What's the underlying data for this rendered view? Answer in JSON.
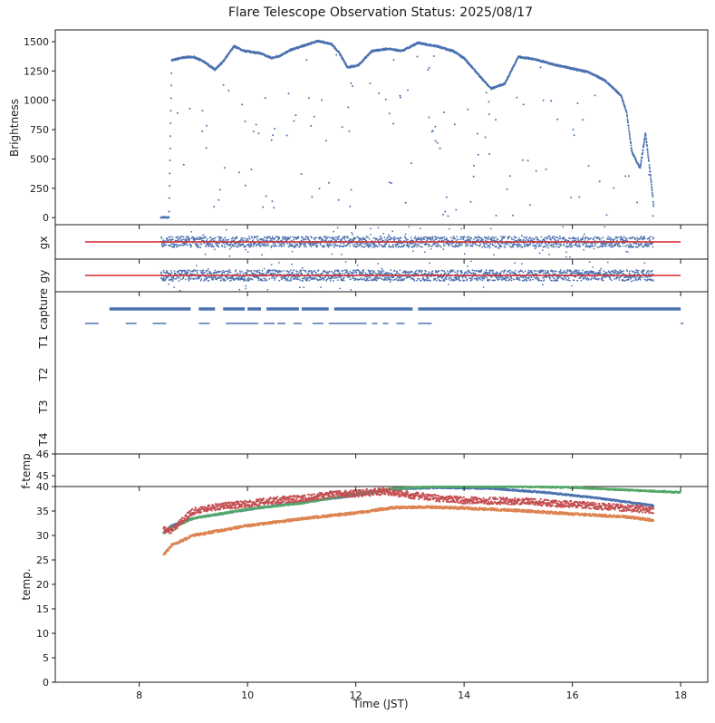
{
  "figure": {
    "title": "Flare Telescope Observation Status: 2025/08/17"
  },
  "chart_data": [
    {
      "panel": "brightness",
      "type": "scatter",
      "ylabel": "Brightness",
      "xlim": [
        6.45,
        18.5
      ],
      "ylim": [
        -60,
        1600
      ],
      "yticks": [
        0,
        250,
        500,
        750,
        1000,
        1250,
        1500
      ],
      "color": "#4c72b0",
      "series": [
        {
          "values_profile": [
            [
              8.4,
              0
            ],
            [
              8.55,
              0
            ],
            [
              8.6,
              1340
            ],
            [
              8.8,
              1365
            ],
            [
              9.0,
              1370
            ],
            [
              9.2,
              1330
            ],
            [
              9.4,
              1260
            ],
            [
              9.55,
              1330
            ],
            [
              9.75,
              1460
            ],
            [
              9.95,
              1420
            ],
            [
              10.25,
              1400
            ],
            [
              10.45,
              1360
            ],
            [
              10.6,
              1380
            ],
            [
              10.8,
              1430
            ],
            [
              11.0,
              1460
            ],
            [
              11.3,
              1505
            ],
            [
              11.55,
              1480
            ],
            [
              11.7,
              1400
            ],
            [
              11.85,
              1280
            ],
            [
              12.05,
              1300
            ],
            [
              12.3,
              1420
            ],
            [
              12.6,
              1440
            ],
            [
              12.85,
              1420
            ],
            [
              13.15,
              1490
            ],
            [
              13.5,
              1460
            ],
            [
              13.8,
              1420
            ],
            [
              14.0,
              1360
            ],
            [
              14.3,
              1200
            ],
            [
              14.5,
              1100
            ],
            [
              14.75,
              1140
            ],
            [
              15.0,
              1370
            ],
            [
              15.3,
              1350
            ],
            [
              15.7,
              1300
            ],
            [
              16.0,
              1270
            ],
            [
              16.3,
              1240
            ],
            [
              16.6,
              1170
            ],
            [
              16.9,
              1040
            ],
            [
              17.0,
              900
            ],
            [
              17.1,
              560
            ],
            [
              17.25,
              420
            ],
            [
              17.35,
              720
            ],
            [
              17.45,
              330
            ],
            [
              17.5,
              100
            ]
          ]
        }
      ]
    },
    {
      "panel": "gx",
      "type": "scatter",
      "ylabel": "gx",
      "reference_line": {
        "x": [
          7.0,
          18.0
        ],
        "value": 0,
        "color": "#d62728"
      },
      "color": "#4c72b0"
    },
    {
      "panel": "gy",
      "type": "scatter",
      "ylabel": "gy",
      "reference_line": {
        "x": [
          7.0,
          18.0
        ],
        "value": 0,
        "color": "#d62728"
      },
      "color": "#4c72b0"
    },
    {
      "panel": "capture",
      "type": "scatter",
      "ylabels": [
        "capture",
        "T1",
        "T2",
        "T3",
        "T4"
      ],
      "color": "#4c72b0",
      "capture_segments": [
        [
          7.45,
          8.95
        ],
        [
          9.1,
          9.4
        ],
        [
          9.55,
          9.95
        ],
        [
          10.0,
          10.25
        ],
        [
          10.35,
          10.95
        ],
        [
          11.0,
          11.5
        ],
        [
          11.6,
          13.05
        ],
        [
          13.15,
          18.0
        ]
      ],
      "t1_segments": [
        [
          7.0,
          7.25
        ],
        [
          7.75,
          7.95
        ],
        [
          8.25,
          8.5
        ],
        [
          9.1,
          9.3
        ],
        [
          9.6,
          10.2
        ],
        [
          10.3,
          10.5
        ],
        [
          10.55,
          10.7
        ],
        [
          10.85,
          11.0
        ],
        [
          11.2,
          11.4
        ],
        [
          11.5,
          12.2
        ],
        [
          12.3,
          12.4
        ],
        [
          12.5,
          12.6
        ],
        [
          12.75,
          12.9
        ],
        [
          13.15,
          13.4
        ],
        [
          18.0,
          18.05
        ]
      ]
    },
    {
      "panel": "f-temp",
      "type": "scatter",
      "ylabel": "f-temp",
      "ylim": [
        44.5,
        46
      ],
      "yticks": [
        45,
        46
      ]
    },
    {
      "panel": "temp",
      "type": "scatter",
      "ylabel": "temp.",
      "xlabel": "Time (JST)",
      "xlim": [
        6.45,
        18.5
      ],
      "xticks": [
        8,
        10,
        12,
        14,
        16,
        18
      ],
      "ylim": [
        0,
        40
      ],
      "yticks": [
        0,
        5,
        10,
        15,
        20,
        25,
        30,
        35,
        40
      ],
      "series": [
        {
          "color": "#4c72b0",
          "profile": [
            [
              8.45,
              30.5
            ],
            [
              8.6,
              32
            ],
            [
              9.0,
              33.5
            ],
            [
              10.0,
              35.3
            ],
            [
              11.0,
              36.8
            ],
            [
              12.0,
              38.2
            ],
            [
              12.7,
              39.5
            ],
            [
              13.5,
              39.8
            ],
            [
              14.5,
              39.6
            ],
            [
              15.5,
              38.8
            ],
            [
              16.5,
              37.6
            ],
            [
              17.5,
              36.1
            ]
          ]
        },
        {
          "color": "#dd8452",
          "profile": [
            [
              8.45,
              26
            ],
            [
              8.6,
              28
            ],
            [
              9.0,
              30
            ],
            [
              10.0,
              32
            ],
            [
              11.0,
              33.4
            ],
            [
              12.0,
              34.6
            ],
            [
              12.7,
              35.7
            ],
            [
              13.3,
              35.8
            ],
            [
              14.0,
              35.6
            ],
            [
              15.0,
              35.1
            ],
            [
              16.0,
              34.4
            ],
            [
              17.0,
              33.8
            ],
            [
              17.5,
              33.1
            ]
          ]
        },
        {
          "color": "#55a868",
          "profile": [
            [
              8.45,
              30.5
            ],
            [
              8.6,
              31.5
            ],
            [
              9.0,
              33.5
            ],
            [
              10.0,
              35.4
            ],
            [
              11.0,
              36.6
            ],
            [
              12.0,
              38.5
            ],
            [
              12.7,
              39.6
            ],
            [
              13.5,
              40
            ],
            [
              15.0,
              40
            ],
            [
              16.0,
              39.8
            ],
            [
              17.0,
              39.3
            ],
            [
              18.0,
              38.8
            ]
          ]
        },
        {
          "color": "#c44e52",
          "profile": [
            [
              8.45,
              31
            ],
            [
              8.6,
              31
            ],
            [
              9.0,
              35
            ],
            [
              9.5,
              36
            ],
            [
              10.0,
              36.5
            ],
            [
              10.5,
              37.2
            ],
            [
              11.0,
              37.5
            ],
            [
              11.5,
              38.3
            ],
            [
              12.0,
              38.6
            ],
            [
              12.5,
              39
            ],
            [
              13.0,
              38.3
            ],
            [
              13.5,
              37.6
            ],
            [
              14.0,
              37.2
            ],
            [
              15.0,
              37.0
            ],
            [
              16.0,
              36.4
            ],
            [
              17.0,
              35.6
            ],
            [
              17.5,
              35.2
            ]
          ]
        }
      ]
    }
  ]
}
